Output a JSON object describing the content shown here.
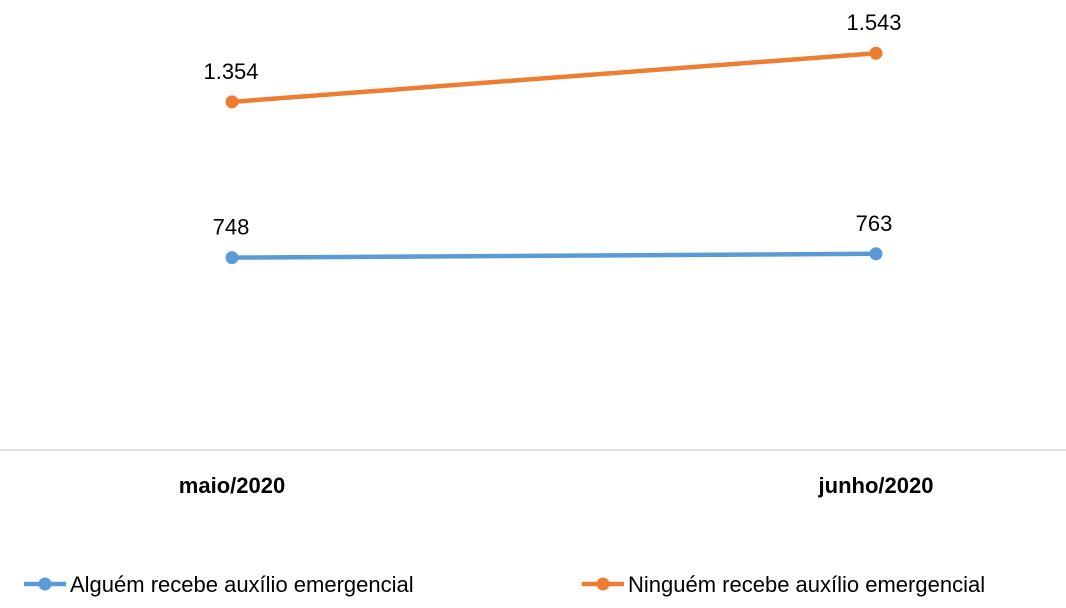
{
  "chart_data": {
    "type": "line",
    "categories": [
      "maio/2020",
      "junho/2020"
    ],
    "series": [
      {
        "name": "Alguém recebe auxílio emergencial",
        "values": [
          748,
          763
        ],
        "labels": [
          "748",
          "763"
        ],
        "color": "#5B9BD5"
      },
      {
        "name": "Ninguém recebe auxílio emergencial",
        "values": [
          1354,
          1543
        ],
        "labels": [
          "1.354",
          "1.543"
        ],
        "color": "#ED7D31"
      }
    ],
    "ylim": [
      0,
      1750
    ],
    "grid": false,
    "legend": "bottom",
    "axis_color": "#D9D9D9"
  }
}
